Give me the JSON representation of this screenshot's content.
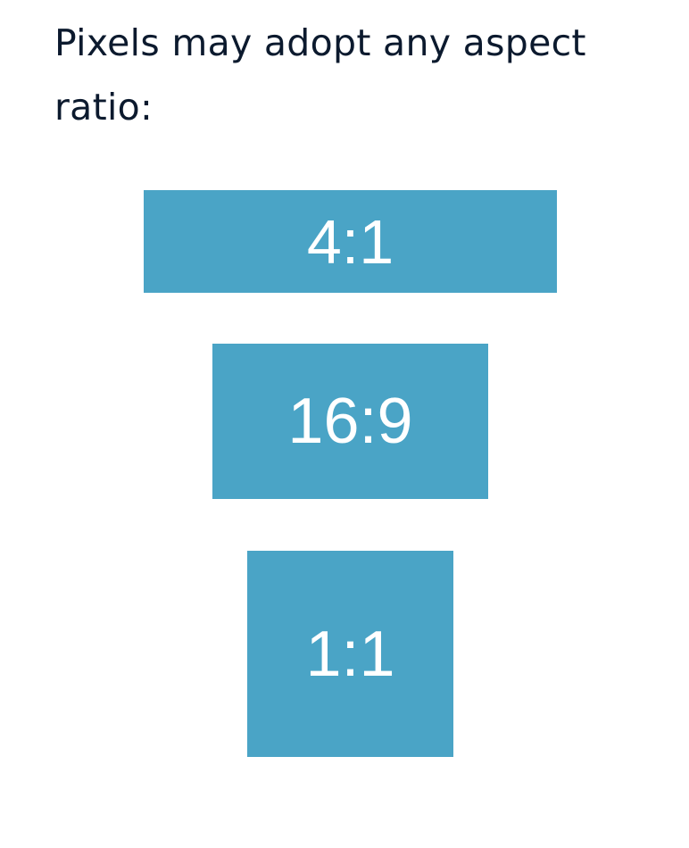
{
  "intro_text": "Pixels may adopt any aspect ratio:",
  "colors": {
    "box_fill": "#4aa4c6",
    "text": "#0c1a2e"
  },
  "ratios": [
    {
      "label": "4:1"
    },
    {
      "label": "16:9"
    },
    {
      "label": "1:1"
    }
  ]
}
